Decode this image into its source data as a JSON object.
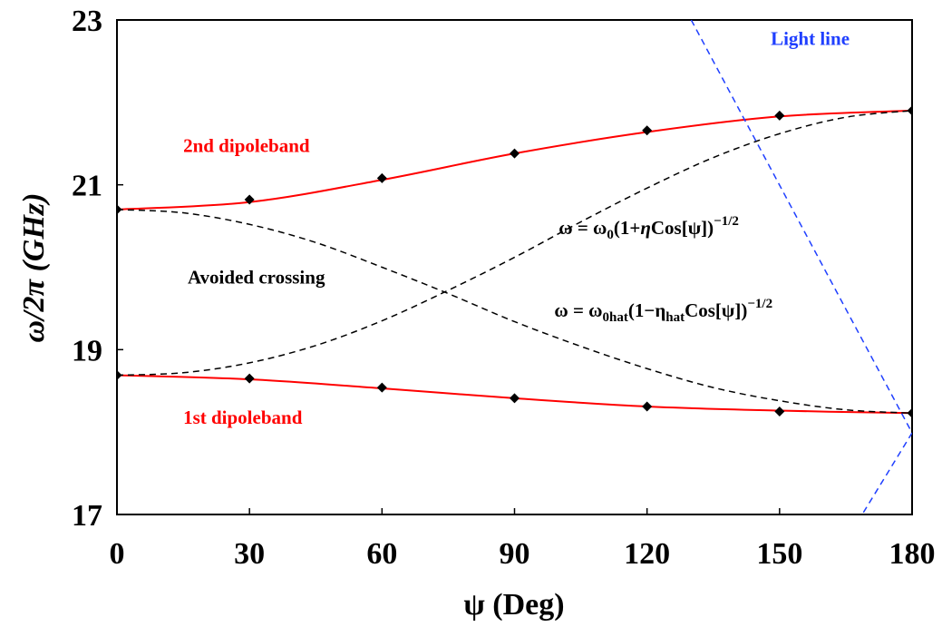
{
  "chart_data": {
    "type": "line",
    "xlabel": "ψ (Deg)",
    "ylabel": "ω/2π (GHz)",
    "xlim": [
      0,
      180
    ],
    "ylim": [
      17,
      23
    ],
    "xticks": [
      0,
      30,
      60,
      90,
      120,
      150,
      180
    ],
    "yticks": [
      17,
      19,
      21,
      23
    ],
    "grid": false,
    "series": [
      {
        "name": "2nd dipoleband",
        "style": "solid-line-with-markers",
        "color": "#ff0000",
        "x": [
          0,
          30,
          60,
          90,
          120,
          150,
          180
        ],
        "y": [
          20.7,
          20.82,
          21.08,
          21.38,
          21.66,
          21.84,
          21.9
        ],
        "curve_y": [
          20.7,
          20.79,
          21.06,
          21.38,
          21.64,
          21.83,
          21.9
        ]
      },
      {
        "name": "1st dipoleband",
        "style": "solid-line-with-markers",
        "color": "#ff0000",
        "x": [
          0,
          30,
          60,
          90,
          120,
          150,
          180
        ],
        "y": [
          18.69,
          18.65,
          18.54,
          18.41,
          18.31,
          18.25,
          18.23
        ],
        "curve_y": [
          18.69,
          18.64,
          18.53,
          18.41,
          18.31,
          18.26,
          18.23
        ]
      },
      {
        "name": "ω = ω0(1+ηCos[ψ])^-1/2",
        "style": "dashed",
        "color": "#000000",
        "x": [
          0,
          15,
          30,
          45,
          60,
          75,
          90,
          105,
          120,
          135,
          150,
          165,
          180
        ],
        "y": [
          18.69,
          18.72,
          18.84,
          19.05,
          19.35,
          19.72,
          20.12,
          20.55,
          20.96,
          21.33,
          21.62,
          21.82,
          21.9
        ]
      },
      {
        "name": "ω = ω0hat(1-ηhatCos[ψ])^-1/2",
        "style": "dashed",
        "color": "#000000",
        "x": [
          0,
          15,
          30,
          45,
          60,
          75,
          90,
          105,
          120,
          135,
          150,
          165,
          180
        ],
        "y": [
          20.7,
          20.66,
          20.52,
          20.3,
          20.0,
          19.68,
          19.34,
          19.04,
          18.77,
          18.54,
          18.38,
          18.27,
          18.23
        ]
      },
      {
        "name": "Light line",
        "style": "dashed",
        "color": "#1f3fff",
        "x": [
          130.0,
          180.0,
          168.7
        ],
        "y": [
          23.0,
          17.99,
          17.0
        ]
      }
    ],
    "annotations": [
      {
        "text": "Light line",
        "color": "#1f3fff",
        "x": 148,
        "y": 22.7
      },
      {
        "text": "2nd dipoleband",
        "color": "#ff0000",
        "x": 15,
        "y": 21.4
      },
      {
        "text": "1st dipoleband",
        "color": "#ff0000",
        "x": 15,
        "y": 18.1
      },
      {
        "text": "Avoided crossing",
        "color": "#000000",
        "x": 16,
        "y": 19.8
      }
    ],
    "formula_1": {
      "lead": "ω = ω",
      "sub": "0",
      "mid": "(1+",
      "eta": "η",
      "tail": "Cos[ψ])",
      "exp": "−1/2",
      "x": 100,
      "y": 20.4
    },
    "formula_2": {
      "lead": "ω = ω",
      "sub": "0hat",
      "mid": "(1−η",
      "sub2": "hat",
      "tail": "Cos[ψ])",
      "exp": "−1/2",
      "x": 99,
      "y": 19.4
    },
    "colors": {
      "band": "#ff0000",
      "dashed": "#000000",
      "light_line": "#1f3fff",
      "marker": "#000000"
    }
  }
}
